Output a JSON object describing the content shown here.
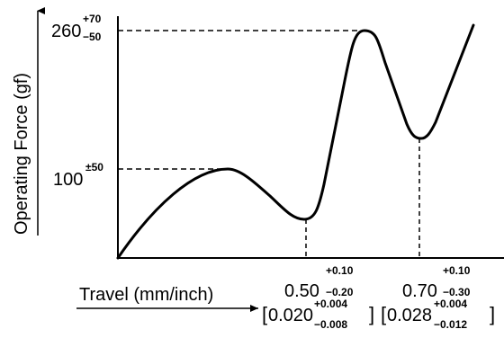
{
  "chart_data": {
    "type": "line",
    "title": "",
    "xlabel": "Travel (mm/inch)",
    "ylabel": "Operating Force (gf)",
    "grid": false,
    "legend": "none",
    "colors": {
      "line": "#000000",
      "guides": "#000000",
      "background": "#ffffff"
    },
    "series": [
      {
        "values_note": "force-travel curve (relative shape)",
        "points": [
          [
            0.0,
            0
          ],
          [
            0.25,
            100
          ],
          [
            0.5,
            48
          ],
          [
            0.62,
            260
          ],
          [
            0.7,
            138
          ],
          [
            0.85,
            260
          ]
        ]
      }
    ],
    "y_ticks": [
      {
        "base": "100",
        "tol_upper": "±50",
        "tol_lower": ""
      },
      {
        "base": "260",
        "tol_upper": "+70",
        "tol_lower": "−50"
      }
    ],
    "x_ticks": [
      {
        "base_mm": "0.50",
        "tol_mm_upper": "+0.10",
        "tol_mm_lower": "−0.20",
        "base_in": "0.020",
        "tol_in_upper": "+0.004",
        "tol_in_lower": "−0.008"
      },
      {
        "base_mm": "0.70",
        "tol_mm_upper": "+0.10",
        "tol_mm_lower": "−0.30",
        "base_in": "0.028",
        "tol_in_upper": "+0.004",
        "tol_in_lower": "−0.012"
      }
    ]
  }
}
